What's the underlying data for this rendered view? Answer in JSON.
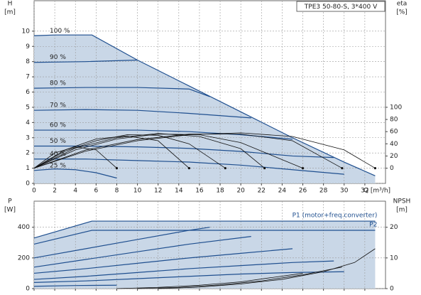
{
  "chart_data": [
    {
      "type": "line",
      "title": "TPE3 50-80-S, 3*400 V",
      "ylabel": "H",
      "yunit": "[m]",
      "y2label": "eta",
      "y2unit": "[%]",
      "xlabel": "Q [m³/h]",
      "xlim": [
        0,
        34
      ],
      "xticks": [
        0,
        2,
        4,
        6,
        8,
        10,
        12,
        14,
        16,
        18,
        20,
        22,
        24,
        26,
        28,
        30,
        32
      ],
      "ylim": [
        0,
        12
      ],
      "yticks": [
        0,
        1,
        2,
        3,
        4,
        5,
        6,
        7,
        8,
        9,
        10
      ],
      "y2lim": [
        -25,
        275
      ],
      "y2ticks": [
        0,
        20,
        40,
        60,
        80,
        100
      ],
      "grid": true,
      "area": {
        "color": "#c9d7e7",
        "x": [
          0,
          5.6,
          10,
          15,
          20,
          25,
          30,
          33
        ],
        "values": [
          9.75,
          9.75,
          8.1,
          6.4,
          4.7,
          3.0,
          1.4,
          0.5
        ]
      },
      "series": [
        {
          "name": "100 %",
          "color": "#1f4f8f",
          "x": [
            0,
            2,
            4,
            5.6,
            10,
            15,
            20,
            25,
            30,
            33
          ],
          "values": [
            9.7,
            9.75,
            9.75,
            9.75,
            8.1,
            6.4,
            4.7,
            3.0,
            1.4,
            0.5
          ]
        },
        {
          "name": "90 %",
          "color": "#1f4f8f",
          "x": [
            0,
            5,
            10
          ],
          "values": [
            7.95,
            8.0,
            8.1
          ]
        },
        {
          "name": "80 %",
          "color": "#1f4f8f",
          "x": [
            0,
            5,
            10,
            15,
            17
          ],
          "values": [
            6.25,
            6.3,
            6.3,
            6.2,
            5.7
          ]
        },
        {
          "name": "70 %",
          "color": "#1f4f8f",
          "x": [
            0,
            5,
            10,
            15,
            21
          ],
          "values": [
            4.8,
            4.85,
            4.8,
            4.6,
            4.3
          ]
        },
        {
          "name": "60 %",
          "color": "#1f4f8f",
          "x": [
            0,
            5,
            10,
            15,
            20,
            25
          ],
          "values": [
            3.5,
            3.5,
            3.5,
            3.4,
            3.2,
            2.9
          ]
        },
        {
          "name": "50 %",
          "color": "#1f4f8f",
          "x": [
            0,
            5,
            10,
            15,
            20,
            25,
            29
          ],
          "values": [
            2.45,
            2.45,
            2.4,
            2.3,
            2.1,
            1.8,
            1.7
          ]
        },
        {
          "name": "40 %",
          "color": "#1f4f8f",
          "x": [
            0,
            5,
            10,
            15,
            20,
            25,
            30
          ],
          "values": [
            1.6,
            1.6,
            1.5,
            1.4,
            1.2,
            0.9,
            0.6
          ]
        },
        {
          "name": "25 %",
          "color": "#1f4f8f",
          "x": [
            0,
            2,
            4,
            6,
            8
          ],
          "values": [
            0.85,
            0.95,
            0.9,
            0.7,
            0.35
          ]
        },
        {
          "axis": "y2",
          "color": "#111",
          "x": [
            0,
            5,
            10,
            15,
            20,
            25,
            30,
            33
          ],
          "values": [
            0,
            28,
            45,
            55,
            58,
            52,
            30,
            0
          ]
        },
        {
          "axis": "y2",
          "color": "#111",
          "x": [
            0,
            5,
            10,
            15,
            20,
            25,
            29.8
          ],
          "values": [
            0,
            30,
            47,
            56,
            56,
            45,
            0
          ]
        },
        {
          "axis": "y2",
          "color": "#111",
          "x": [
            0,
            4,
            8,
            12,
            16,
            20,
            26
          ],
          "values": [
            0,
            30,
            48,
            56,
            55,
            42,
            0
          ]
        },
        {
          "axis": "y2",
          "color": "#111",
          "x": [
            0,
            4,
            8,
            12,
            16,
            20,
            22.3
          ],
          "values": [
            0,
            33,
            50,
            57,
            52,
            32,
            0
          ]
        },
        {
          "axis": "y2",
          "color": "#111",
          "x": [
            0,
            3,
            6,
            9,
            12,
            15,
            18.5
          ],
          "values": [
            0,
            28,
            45,
            55,
            54,
            40,
            0
          ]
        },
        {
          "axis": "y2",
          "color": "#111",
          "x": [
            0,
            3,
            6,
            9,
            12,
            15
          ],
          "values": [
            0,
            30,
            48,
            53,
            45,
            0
          ]
        },
        {
          "axis": "y2",
          "color": "#111",
          "x": [
            0,
            2,
            4,
            6,
            8
          ],
          "values": [
            0,
            25,
            35,
            30,
            0
          ]
        }
      ]
    },
    {
      "type": "line",
      "ylabel": "P",
      "yunit": "[W]",
      "y2label": "NPSH",
      "y2unit": "[m]",
      "xlim": [
        0,
        34
      ],
      "xticks": [
        0,
        2,
        4,
        6,
        8,
        10,
        12,
        14,
        16,
        18,
        20,
        22,
        24,
        26,
        28,
        30,
        32
      ],
      "ylim": [
        0,
        570
      ],
      "yticks": [
        0,
        200,
        400
      ],
      "y2lim": [
        0,
        28.5
      ],
      "y2ticks": [
        0,
        10,
        20
      ],
      "grid": true,
      "area": {
        "color": "#c9d7e7",
        "x": [
          0,
          5.6,
          33
        ],
        "values": [
          330,
          440,
          440
        ]
      },
      "series": [
        {
          "name": "P1 (motor+freq.converter)",
          "color": "#1f4f8f",
          "x": [
            0,
            5.6,
            33
          ],
          "values": [
            330,
            440,
            440
          ]
        },
        {
          "name": "P2",
          "color": "#1f4f8f",
          "x": [
            0,
            5.6,
            33
          ],
          "values": [
            290,
            380,
            380
          ]
        },
        {
          "color": "#1f4f8f",
          "x": [
            0,
            5,
            10,
            15,
            17
          ],
          "values": [
            200,
            260,
            320,
            380,
            400
          ]
        },
        {
          "color": "#1f4f8f",
          "x": [
            0,
            5,
            10,
            15,
            21
          ],
          "values": [
            140,
            190,
            240,
            290,
            340
          ]
        },
        {
          "color": "#1f4f8f",
          "x": [
            0,
            5,
            10,
            15,
            20,
            25
          ],
          "values": [
            100,
            130,
            165,
            200,
            230,
            260
          ]
        },
        {
          "color": "#1f4f8f",
          "x": [
            0,
            5,
            10,
            15,
            20,
            25,
            29
          ],
          "values": [
            60,
            80,
            105,
            130,
            150,
            170,
            180
          ]
        },
        {
          "color": "#1f4f8f",
          "x": [
            0,
            5,
            10,
            15,
            20,
            25,
            30
          ],
          "values": [
            40,
            50,
            65,
            80,
            95,
            105,
            110
          ]
        },
        {
          "color": "#1f4f8f",
          "x": [
            0,
            4,
            8
          ],
          "values": [
            15,
            20,
            22
          ]
        },
        {
          "axis": "y2",
          "color": "#111",
          "x": [
            12,
            16,
            20,
            24,
            28,
            31,
            33
          ],
          "values": [
            0,
            0.5,
            1.5,
            3,
            5.5,
            8.5,
            13
          ]
        },
        {
          "axis": "y2",
          "color": "#111",
          "x": [
            10,
            14,
            18,
            22,
            26,
            29.8
          ],
          "values": [
            0,
            0.4,
            1.2,
            2.5,
            4.5,
            7
          ]
        },
        {
          "axis": "y2",
          "color": "#111",
          "x": [
            8,
            12,
            16,
            20,
            26
          ],
          "values": [
            0,
            0.4,
            1.1,
            2.2,
            5
          ]
        }
      ]
    }
  ]
}
